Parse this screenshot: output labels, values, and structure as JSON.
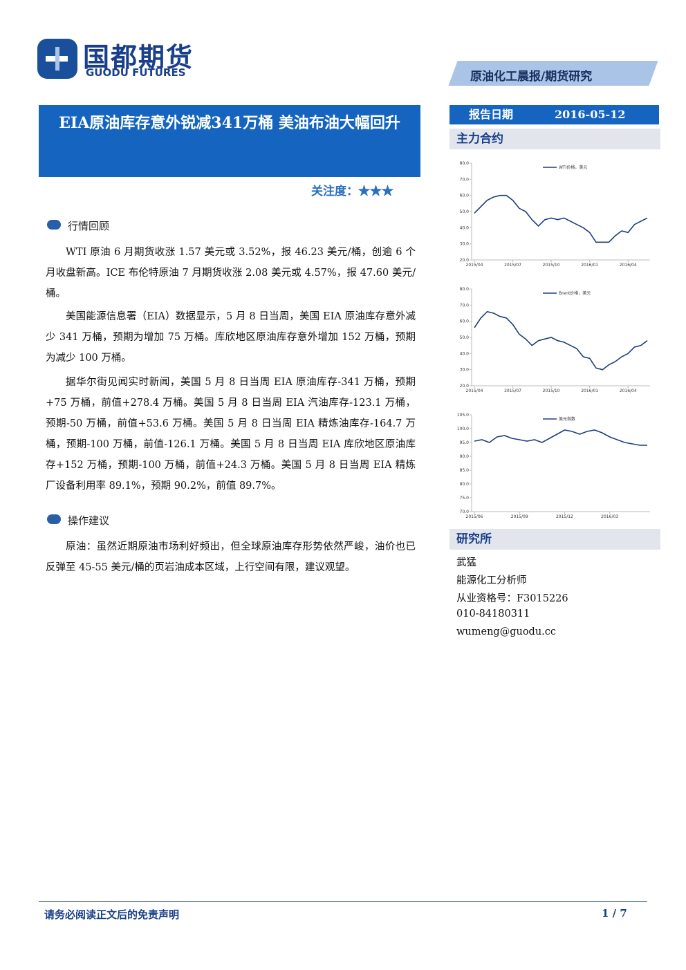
{
  "header": {
    "logo_cn": "国都期货",
    "logo_en": "GUODU FUTURES",
    "banner": "原油化工晨报/期货研究"
  },
  "title": "EIA原油库存意外锐减341万桶 美油布油大幅回升",
  "attention": {
    "label": "关注度：",
    "stars": "★★★"
  },
  "sections": [
    {
      "heading": "行情回顾",
      "paragraphs": [
        "WTI 原油 6 月期货收涨 1.57 美元或 3.52%，报 46.23 美元/桶，创逾 6 个月收盘新高。ICE 布伦特原油 7 月期货收涨 2.08 美元或 4.57%，报 47.60 美元/桶。",
        "美国能源信息署（EIA）数据显示，5 月 8 日当周，美国 EIA 原油库存意外减少 341 万桶，预期为增加 75 万桶。库欣地区原油库存意外增加 152 万桶，预期为减少 100 万桶。",
        "据华尔街见闻实时新闻，美国 5 月 8 日当周 EIA 原油库存-341 万桶，预期+75 万桶，前值+278.4 万桶。美国 5 月 8 日当周 EIA 汽油库存-123.1 万桶，预期-50 万桶，前值+53.6 万桶。美国 5 月 8 日当周 EIA 精炼油库存-164.7 万桶，预期-100 万桶，前值-126.1 万桶。美国 5 月 8 日当周 EIA 库欣地区原油库存+152 万桶，预期-100 万桶，前值+24.3 万桶。美国 5 月 8 日当周 EIA 精炼厂设备利用率 89.1%，预期 90.2%，前值 89.7%。"
      ]
    },
    {
      "heading": "操作建议",
      "paragraphs": [
        "原油：虽然近期原油市场利好频出，但全球原油库存形势依然严峻，油价也已反弹至 45-55 美元/桶的页岩油成本区域，上行空间有限，建议观望。"
      ]
    }
  ],
  "sidebar": {
    "date_label": "报告日期",
    "date": "2016-05-12",
    "contract_label": "主力合约",
    "research_label": "研究所",
    "contacts": [
      "武猛",
      "能源化工分析师",
      "从业资格号：F3015226",
      "010-84180311",
      "wumeng@guodu.cc"
    ]
  },
  "chart_data": [
    {
      "type": "line",
      "categories": [
        "2015/04",
        null,
        null,
        null,
        null,
        null,
        "2015/07",
        null,
        null,
        null,
        null,
        null,
        "2015/10",
        null,
        null,
        null,
        null,
        null,
        "2016/01",
        null,
        null,
        null,
        null,
        null,
        "2016/04",
        null,
        null,
        null
      ],
      "series": [
        {
          "name": "WTI价格，美元",
          "color": "#1f3d7a",
          "values": [
            49,
            53,
            57,
            59,
            60,
            60,
            57,
            52,
            50,
            45,
            41,
            45,
            46,
            45,
            46,
            44,
            42,
            40,
            37,
            31,
            31,
            31,
            35,
            38,
            37,
            42,
            44,
            46
          ]
        }
      ],
      "ylim": [
        20,
        80
      ],
      "yticks": [
        {
          "value": 20,
          "label": "20.0"
        },
        {
          "value": 30,
          "label": "30.0"
        },
        {
          "value": 40,
          "label": "40.0"
        },
        {
          "value": 50,
          "label": "50.0"
        },
        {
          "value": 60,
          "label": "60.0"
        },
        {
          "value": 70,
          "label": "70.0"
        },
        {
          "value": 80,
          "label": "80.0"
        }
      ]
    },
    {
      "type": "line",
      "categories": [
        "2015/04",
        null,
        null,
        null,
        null,
        null,
        "2015/07",
        null,
        null,
        null,
        null,
        null,
        "2015/10",
        null,
        null,
        null,
        null,
        null,
        "2016/01",
        null,
        null,
        null,
        null,
        null,
        "2016/04",
        null,
        null,
        null
      ],
      "series": [
        {
          "name": "Brent价格，美元",
          "color": "#1f3d7a",
          "values": [
            56,
            62,
            66,
            65,
            63,
            62,
            58,
            52,
            49,
            45,
            48,
            49,
            50,
            48,
            47,
            45,
            43,
            38,
            37,
            31,
            30,
            33,
            35,
            38,
            40,
            44,
            45,
            48
          ]
        }
      ],
      "ylim": [
        20,
        80
      ],
      "yticks": [
        {
          "value": 20,
          "label": "20.0"
        },
        {
          "value": 30,
          "label": "30.0"
        },
        {
          "value": 40,
          "label": "40.0"
        },
        {
          "value": 50,
          "label": "50.0"
        },
        {
          "value": 60,
          "label": "60.0"
        },
        {
          "value": 70,
          "label": "70.0"
        },
        {
          "value": 80,
          "label": "80.0"
        }
      ]
    },
    {
      "type": "line",
      "categories": [
        "2015/06",
        null,
        null,
        null,
        null,
        null,
        "2015/09",
        null,
        null,
        null,
        null,
        null,
        "2015/12",
        null,
        null,
        null,
        null,
        null,
        "2016/03",
        null,
        null,
        null,
        null,
        null
      ],
      "series": [
        {
          "name": "美元指数",
          "color": "#1f3d7a",
          "values": [
            95.5,
            96,
            95,
            97,
            97.5,
            96.5,
            96,
            95.5,
            96,
            95,
            96.5,
            98,
            99.5,
            99,
            98,
            99,
            99.5,
            98.5,
            97,
            96,
            95,
            94.5,
            94,
            94
          ]
        }
      ],
      "ylim": [
        70,
        105
      ],
      "yticks": [
        {
          "value": 70,
          "label": "70.0"
        },
        {
          "value": 75,
          "label": "75.0"
        },
        {
          "value": 80,
          "label": "80.0"
        },
        {
          "value": 85,
          "label": "85.0"
        },
        {
          "value": 90,
          "label": "90.0"
        },
        {
          "value": 95,
          "label": "95.0"
        },
        {
          "value": 100,
          "label": "100.0"
        },
        {
          "value": 105,
          "label": "105.0"
        }
      ]
    }
  ],
  "footer": {
    "disclaimer": "请务必阅读正文后的免责声明",
    "page": "1 / 7"
  }
}
